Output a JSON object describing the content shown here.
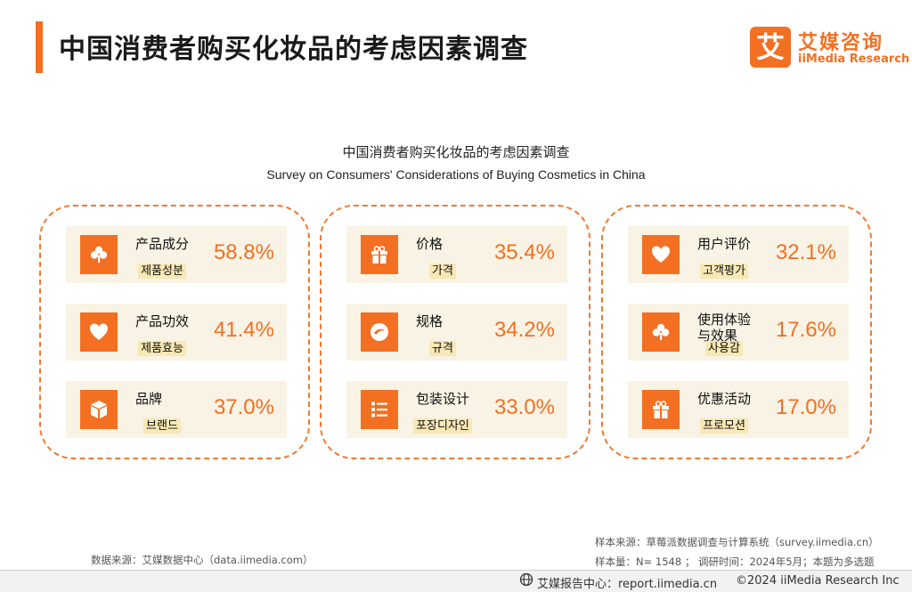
{
  "header": {
    "title": "中国消费者购买化妆品的考虑因素调查"
  },
  "logo": {
    "mark": "艾",
    "cn": "艾媒咨询",
    "en": "iiMedia Research"
  },
  "chart": {
    "title": "中国消费者购买化妆品的考虑因素调查",
    "subtitle": "Survey on Consumers' Considerations of Buying Cosmetics in China"
  },
  "chart_data": {
    "type": "table",
    "title": "中国消费者购买化妆品的考虑因素调查",
    "subtitle": "Survey on Consumers' Considerations of Buying Cosmetics in China",
    "unit": "%",
    "categories": [
      "产品成分",
      "产品功效",
      "品牌",
      "价格",
      "规格",
      "包装设计",
      "用户评价",
      "使用体验与效果",
      "优惠活动"
    ],
    "values": [
      58.8,
      41.4,
      37.0,
      35.4,
      34.2,
      33.0,
      32.1,
      17.6,
      17.0
    ],
    "groups": [
      {
        "items": [
          {
            "label": "产品成分",
            "sub": "제품성분",
            "value": "58.8%",
            "icon": "clover-icon"
          },
          {
            "label": "产品功效",
            "sub": "제품효능",
            "value": "41.4%",
            "icon": "heart-icon"
          },
          {
            "label": "品牌",
            "sub": "브랜드",
            "value": "37.0%",
            "icon": "box-icon"
          }
        ]
      },
      {
        "items": [
          {
            "label": "价格",
            "sub": "가격",
            "value": "35.4%",
            "icon": "gift-icon"
          },
          {
            "label": "规格",
            "sub": "규격",
            "value": "34.2%",
            "icon": "swirl-icon"
          },
          {
            "label": "包装设计",
            "sub": "포장디자인",
            "value": "33.0%",
            "icon": "list-icon"
          }
        ]
      },
      {
        "items": [
          {
            "label": "用户评价",
            "sub": "고객평가",
            "value": "32.1%",
            "icon": "heart-icon"
          },
          {
            "label": "使用体验\n与效果",
            "sub": "사용감",
            "value": "17.6%",
            "icon": "clover-icon"
          },
          {
            "label": "优惠活动",
            "sub": "프로모션",
            "value": "17.0%",
            "icon": "gift-icon"
          }
        ]
      }
    ]
  },
  "notes": {
    "source_left": "数据来源：艾媒数据中心（data.iimedia.com）",
    "sample_source": "样本来源：草莓派数据调查与计算系统（survey.iimedia.cn）",
    "sample_size": "样本量：N= 1548 ； 调研时间：2024年5月；本题为多选题"
  },
  "footer": {
    "report": "艾媒报告中心：report.iimedia.cn",
    "copyright": "©2024  iiMedia Research  Inc"
  },
  "colors": {
    "accent": "#f36f21",
    "card_bg": "#f8f3e4",
    "sub_bg": "#f7e8b4"
  }
}
